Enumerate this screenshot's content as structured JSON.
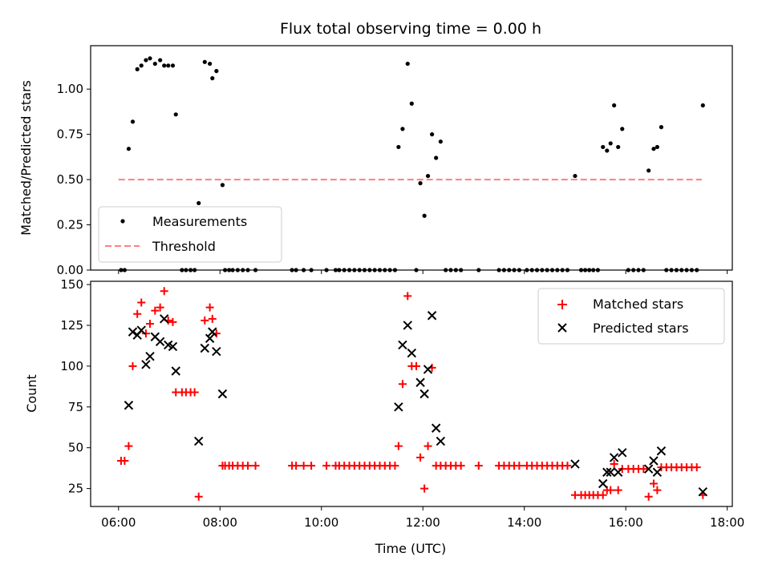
{
  "chart_data": [
    {
      "type": "scatter",
      "title": "Flux total observing time = 0.00 h",
      "xlabel": "",
      "ylabel": "Matched/Predicted stars",
      "xlim": [
        5.45,
        18.1
      ],
      "ylim": [
        0,
        1.24
      ],
      "yticks": [
        0.0,
        0.25,
        0.5,
        0.75,
        1.0
      ],
      "yticklabels": [
        "0.00",
        "0.25",
        "0.50",
        "0.75",
        "1.00"
      ],
      "legend_position": "bottom-left",
      "series": [
        {
          "name": "Measurements",
          "marker": "dot",
          "color": "#000000",
          "points": [
            [
              6.05,
              0
            ],
            [
              6.12,
              0
            ],
            [
              6.2,
              0.67
            ],
            [
              6.28,
              0.82
            ],
            [
              6.37,
              1.11
            ],
            [
              6.45,
              1.13
            ],
            [
              6.54,
              1.16
            ],
            [
              6.62,
              1.17
            ],
            [
              6.72,
              1.14
            ],
            [
              6.82,
              1.16
            ],
            [
              6.9,
              1.13
            ],
            [
              6.98,
              1.13
            ],
            [
              7.07,
              1.13
            ],
            [
              7.13,
              0.86
            ],
            [
              7.25,
              0
            ],
            [
              7.33,
              0
            ],
            [
              7.42,
              0
            ],
            [
              7.5,
              0
            ],
            [
              7.58,
              0.37
            ],
            [
              7.7,
              1.15
            ],
            [
              7.8,
              1.14
            ],
            [
              7.85,
              1.06
            ],
            [
              7.93,
              1.1
            ],
            [
              8.05,
              0.47
            ],
            [
              8.1,
              0
            ],
            [
              8.18,
              0
            ],
            [
              8.25,
              0
            ],
            [
              8.35,
              0
            ],
            [
              8.45,
              0
            ],
            [
              8.55,
              0
            ],
            [
              8.7,
              0
            ],
            [
              9.42,
              0
            ],
            [
              9.5,
              0
            ],
            [
              9.65,
              0
            ],
            [
              9.8,
              0
            ],
            [
              10.1,
              0
            ],
            [
              10.28,
              0
            ],
            [
              10.35,
              0
            ],
            [
              10.45,
              0
            ],
            [
              10.55,
              0
            ],
            [
              10.65,
              0
            ],
            [
              10.75,
              0
            ],
            [
              10.85,
              0
            ],
            [
              10.95,
              0
            ],
            [
              11.05,
              0
            ],
            [
              11.15,
              0
            ],
            [
              11.25,
              0
            ],
            [
              11.35,
              0
            ],
            [
              11.45,
              0
            ],
            [
              11.52,
              0.68
            ],
            [
              11.6,
              0.78
            ],
            [
              11.7,
              1.14
            ],
            [
              11.78,
              0.92
            ],
            [
              11.87,
              0
            ],
            [
              11.95,
              0.48
            ],
            [
              12.03,
              0.3
            ],
            [
              12.1,
              0.52
            ],
            [
              12.18,
              0.75
            ],
            [
              12.26,
              0.62
            ],
            [
              12.35,
              0.71
            ],
            [
              12.45,
              0
            ],
            [
              12.55,
              0
            ],
            [
              12.65,
              0
            ],
            [
              12.75,
              0
            ],
            [
              13.1,
              0
            ],
            [
              13.5,
              0
            ],
            [
              13.6,
              0
            ],
            [
              13.7,
              0
            ],
            [
              13.8,
              0
            ],
            [
              13.9,
              0
            ],
            [
              14.05,
              0
            ],
            [
              14.15,
              0
            ],
            [
              14.25,
              0
            ],
            [
              14.35,
              0
            ],
            [
              14.45,
              0
            ],
            [
              14.55,
              0
            ],
            [
              14.65,
              0
            ],
            [
              14.75,
              0
            ],
            [
              14.85,
              0
            ],
            [
              15.0,
              0.52
            ],
            [
              15.12,
              0
            ],
            [
              15.2,
              0
            ],
            [
              15.28,
              0
            ],
            [
              15.36,
              0
            ],
            [
              15.45,
              0
            ],
            [
              15.55,
              0.68
            ],
            [
              15.63,
              0.66
            ],
            [
              15.7,
              0.7
            ],
            [
              15.77,
              0.91
            ],
            [
              15.85,
              0.68
            ],
            [
              15.93,
              0.78
            ],
            [
              16.05,
              0
            ],
            [
              16.15,
              0
            ],
            [
              16.25,
              0
            ],
            [
              16.35,
              0
            ],
            [
              16.45,
              0.55
            ],
            [
              16.55,
              0.67
            ],
            [
              16.62,
              0.68
            ],
            [
              16.7,
              0.79
            ],
            [
              16.8,
              0
            ],
            [
              16.9,
              0
            ],
            [
              17.0,
              0
            ],
            [
              17.1,
              0
            ],
            [
              17.2,
              0
            ],
            [
              17.3,
              0
            ],
            [
              17.4,
              0
            ],
            [
              17.52,
              0.91
            ]
          ]
        },
        {
          "name": "Threshold",
          "style": "dashed",
          "color": "#ff7f7f",
          "points": [
            [
              6.0,
              0.5
            ],
            [
              17.5,
              0.5
            ]
          ]
        }
      ]
    },
    {
      "type": "scatter",
      "title": "",
      "xlabel": "Time (UTC)",
      "ylabel": "Count",
      "xlim": [
        5.45,
        18.1
      ],
      "ylim": [
        14,
        152
      ],
      "yticks": [
        25,
        50,
        75,
        100,
        125,
        150
      ],
      "yticklabels": [
        "25",
        "50",
        "75",
        "100",
        "125",
        "150"
      ],
      "xticks": [
        6,
        8,
        10,
        12,
        14,
        16,
        18
      ],
      "xticklabels": [
        "06:00",
        "08:00",
        "10:00",
        "12:00",
        "14:00",
        "16:00",
        "18:00"
      ],
      "legend_position": "top-right",
      "series": [
        {
          "name": "Matched stars",
          "marker": "plus",
          "color": "#ff0000",
          "points": [
            [
              6.05,
              42
            ],
            [
              6.12,
              42
            ],
            [
              6.2,
              51
            ],
            [
              6.28,
              100
            ],
            [
              6.37,
              132
            ],
            [
              6.45,
              139
            ],
            [
              6.54,
              120
            ],
            [
              6.62,
              126
            ],
            [
              6.72,
              134
            ],
            [
              6.82,
              136
            ],
            [
              6.9,
              146
            ],
            [
              6.98,
              128
            ],
            [
              7.07,
              127
            ],
            [
              7.13,
              84
            ],
            [
              7.25,
              84
            ],
            [
              7.33,
              84
            ],
            [
              7.42,
              84
            ],
            [
              7.5,
              84
            ],
            [
              7.58,
              20
            ],
            [
              7.7,
              128
            ],
            [
              7.8,
              136
            ],
            [
              7.85,
              129
            ],
            [
              7.93,
              120
            ],
            [
              8.05,
              39
            ],
            [
              8.1,
              39
            ],
            [
              8.18,
              39
            ],
            [
              8.25,
              39
            ],
            [
              8.35,
              39
            ],
            [
              8.45,
              39
            ],
            [
              8.55,
              39
            ],
            [
              8.7,
              39
            ],
            [
              9.42,
              39
            ],
            [
              9.5,
              39
            ],
            [
              9.65,
              39
            ],
            [
              9.8,
              39
            ],
            [
              10.1,
              39
            ],
            [
              10.28,
              39
            ],
            [
              10.35,
              39
            ],
            [
              10.45,
              39
            ],
            [
              10.55,
              39
            ],
            [
              10.65,
              39
            ],
            [
              10.75,
              39
            ],
            [
              10.85,
              39
            ],
            [
              10.95,
              39
            ],
            [
              11.05,
              39
            ],
            [
              11.15,
              39
            ],
            [
              11.25,
              39
            ],
            [
              11.35,
              39
            ],
            [
              11.45,
              39
            ],
            [
              11.52,
              51
            ],
            [
              11.6,
              89
            ],
            [
              11.7,
              143
            ],
            [
              11.78,
              100
            ],
            [
              11.87,
              100
            ],
            [
              11.95,
              44
            ],
            [
              12.03,
              25
            ],
            [
              12.1,
              51
            ],
            [
              12.18,
              99
            ],
            [
              12.26,
              39
            ],
            [
              12.35,
              39
            ],
            [
              12.45,
              39
            ],
            [
              12.55,
              39
            ],
            [
              12.65,
              39
            ],
            [
              12.75,
              39
            ],
            [
              13.1,
              39
            ],
            [
              13.5,
              39
            ],
            [
              13.6,
              39
            ],
            [
              13.7,
              39
            ],
            [
              13.8,
              39
            ],
            [
              13.9,
              39
            ],
            [
              14.05,
              39
            ],
            [
              14.15,
              39
            ],
            [
              14.25,
              39
            ],
            [
              14.35,
              39
            ],
            [
              14.45,
              39
            ],
            [
              14.55,
              39
            ],
            [
              14.65,
              39
            ],
            [
              14.75,
              39
            ],
            [
              14.85,
              39
            ],
            [
              15.0,
              21
            ],
            [
              15.12,
              21
            ],
            [
              15.2,
              21
            ],
            [
              15.28,
              21
            ],
            [
              15.36,
              21
            ],
            [
              15.45,
              21
            ],
            [
              15.55,
              21
            ],
            [
              15.63,
              24
            ],
            [
              15.7,
              24
            ],
            [
              15.77,
              40
            ],
            [
              15.85,
              24
            ],
            [
              15.93,
              37
            ],
            [
              16.05,
              37
            ],
            [
              16.15,
              37
            ],
            [
              16.25,
              37
            ],
            [
              16.35,
              37
            ],
            [
              16.45,
              20
            ],
            [
              16.55,
              28
            ],
            [
              16.62,
              24
            ],
            [
              16.7,
              38
            ],
            [
              16.8,
              38
            ],
            [
              16.9,
              38
            ],
            [
              17.0,
              38
            ],
            [
              17.1,
              38
            ],
            [
              17.2,
              38
            ],
            [
              17.3,
              38
            ],
            [
              17.4,
              38
            ],
            [
              17.52,
              21
            ]
          ]
        },
        {
          "name": "Predicted stars",
          "marker": "x",
          "color": "#000000",
          "points": [
            [
              6.2,
              76
            ],
            [
              6.28,
              121
            ],
            [
              6.37,
              119
            ],
            [
              6.45,
              122
            ],
            [
              6.54,
              101
            ],
            [
              6.62,
              106
            ],
            [
              6.72,
              118
            ],
            [
              6.82,
              115
            ],
            [
              6.9,
              129
            ],
            [
              6.98,
              113
            ],
            [
              7.07,
              112
            ],
            [
              7.13,
              97
            ],
            [
              7.58,
              54
            ],
            [
              7.7,
              111
            ],
            [
              7.8,
              117
            ],
            [
              7.85,
              121
            ],
            [
              7.93,
              109
            ],
            [
              8.05,
              83
            ],
            [
              11.52,
              75
            ],
            [
              11.6,
              113
            ],
            [
              11.7,
              125
            ],
            [
              11.78,
              108
            ],
            [
              11.95,
              90
            ],
            [
              12.03,
              83
            ],
            [
              12.1,
              98
            ],
            [
              12.18,
              131
            ],
            [
              12.26,
              62
            ],
            [
              12.35,
              54
            ],
            [
              15.0,
              40
            ],
            [
              15.55,
              28
            ],
            [
              15.63,
              35
            ],
            [
              15.7,
              35
            ],
            [
              15.77,
              44
            ],
            [
              15.85,
              35
            ],
            [
              15.93,
              47
            ],
            [
              16.45,
              37
            ],
            [
              16.55,
              42
            ],
            [
              16.62,
              35
            ],
            [
              16.7,
              48
            ],
            [
              17.52,
              23
            ]
          ]
        }
      ]
    }
  ]
}
